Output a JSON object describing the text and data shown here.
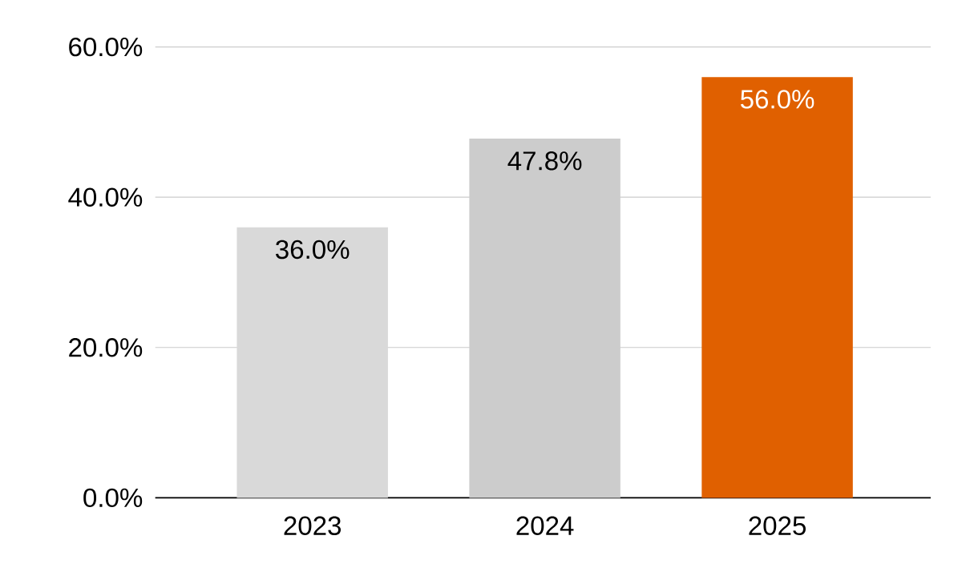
{
  "chart_data": {
    "type": "bar",
    "categories": [
      "2023",
      "2024",
      "2025"
    ],
    "values": [
      36.0,
      47.8,
      56.0
    ],
    "colors": [
      "#d9d9d9",
      "#cccccc",
      "#e06000"
    ],
    "value_labels": [
      "36.0%",
      "47.8%",
      "56.0%"
    ],
    "ylim": [
      0,
      60
    ],
    "yticks": [
      {
        "value": 0,
        "label": "0.0%"
      },
      {
        "value": 20,
        "label": "20.0%"
      },
      {
        "value": 40,
        "label": "40.0%"
      },
      {
        "value": 60,
        "label": "60.0%"
      }
    ],
    "grid": "y"
  }
}
